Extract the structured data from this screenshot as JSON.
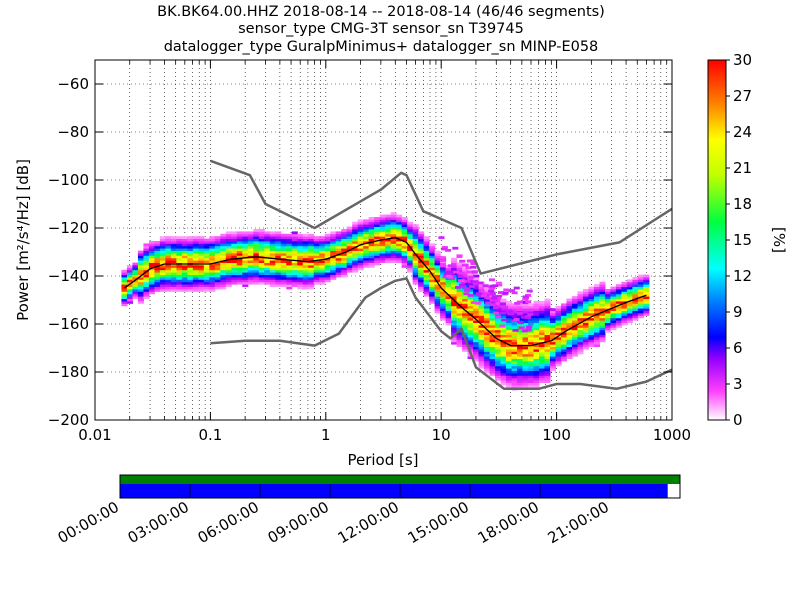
{
  "header": {
    "line1": "BK.BK64.00.HHZ   2018-08-14 -- 2018-08-14  (46/46 segments)",
    "line2": "sensor_type CMG-3T sensor_sn T39745",
    "line3": "datalogger_type GuralpMinimus+ datalogger_sn MINP-E058"
  },
  "chart_data": {
    "type": "heatmap",
    "xlabel": "Period [s]",
    "ylabel": "Power [m²/s⁴/Hz] [dB]",
    "xscale": "log",
    "xlim": [
      0.01,
      1000
    ],
    "ylim": [
      -200,
      -50
    ],
    "x_ticks": [
      {
        "v": 0.01,
        "label": "0.01"
      },
      {
        "v": 0.1,
        "label": "0.1"
      },
      {
        "v": 1,
        "label": "1"
      },
      {
        "v": 10,
        "label": "10"
      },
      {
        "v": 100,
        "label": "100"
      },
      {
        "v": 1000,
        "label": "1000"
      }
    ],
    "y_ticks": [
      {
        "v": -60,
        "label": "−60"
      },
      {
        "v": -80,
        "label": "−80"
      },
      {
        "v": -100,
        "label": "−100"
      },
      {
        "v": -120,
        "label": "−120"
      },
      {
        "v": -140,
        "label": "−140"
      },
      {
        "v": -160,
        "label": "−160"
      },
      {
        "v": -180,
        "label": "−180"
      },
      {
        "v": -200,
        "label": "−200"
      }
    ],
    "grid": true,
    "colorbar": {
      "label": "[%]",
      "range": [
        0,
        30
      ],
      "ticks": [
        {
          "v": 0,
          "label": "0"
        },
        {
          "v": 3,
          "label": "3"
        },
        {
          "v": 6,
          "label": "6"
        },
        {
          "v": 9,
          "label": "9"
        },
        {
          "v": 12,
          "label": "12"
        },
        {
          "v": 15,
          "label": "15"
        },
        {
          "v": 18,
          "label": "18"
        },
        {
          "v": 21,
          "label": "21"
        },
        {
          "v": 24,
          "label": "24"
        },
        {
          "v": 27,
          "label": "27"
        },
        {
          "v": 30,
          "label": "30"
        }
      ]
    },
    "mode_curve": [
      [
        0.018,
        -145
      ],
      [
        0.022,
        -142
      ],
      [
        0.03,
        -137
      ],
      [
        0.04,
        -135
      ],
      [
        0.06,
        -135
      ],
      [
        0.1,
        -135
      ],
      [
        0.15,
        -133
      ],
      [
        0.25,
        -132
      ],
      [
        0.4,
        -133
      ],
      [
        0.7,
        -134
      ],
      [
        1.0,
        -133
      ],
      [
        1.5,
        -130
      ],
      [
        2.0,
        -127
      ],
      [
        3.0,
        -125
      ],
      [
        4.0,
        -124
      ],
      [
        5.0,
        -126
      ],
      [
        6.0,
        -131
      ],
      [
        8.0,
        -138
      ],
      [
        10.0,
        -145
      ],
      [
        15.0,
        -153
      ],
      [
        20.0,
        -158
      ],
      [
        30.0,
        -166
      ],
      [
        40.0,
        -169
      ],
      [
        60.0,
        -169
      ],
      [
        90.0,
        -167
      ],
      [
        120.0,
        -163
      ],
      [
        200.0,
        -157
      ],
      [
        400.0,
        -151
      ],
      [
        600.0,
        -148
      ]
    ],
    "nhnm": [
      [
        0.1,
        -92
      ],
      [
        0.22,
        -98
      ],
      [
        0.3,
        -110
      ],
      [
        0.8,
        -120
      ],
      [
        3.0,
        -104
      ],
      [
        4.5,
        -97
      ],
      [
        5.0,
        -98
      ],
      [
        7.0,
        -113
      ],
      [
        15.0,
        -120
      ],
      [
        22.0,
        -139
      ],
      [
        100.0,
        -131
      ],
      [
        350.0,
        -126
      ],
      [
        1000.0,
        -112
      ]
    ],
    "nlnm": [
      [
        0.1,
        -168
      ],
      [
        0.2,
        -167
      ],
      [
        0.4,
        -167
      ],
      [
        0.8,
        -169
      ],
      [
        1.3,
        -164
      ],
      [
        2.2,
        -149
      ],
      [
        3.0,
        -145
      ],
      [
        4.0,
        -142
      ],
      [
        5.0,
        -141
      ],
      [
        6.0,
        -149
      ],
      [
        10.0,
        -163
      ],
      [
        12.0,
        -166
      ],
      [
        15.0,
        -162
      ],
      [
        20.0,
        -178
      ],
      [
        35.0,
        -187
      ],
      [
        70.0,
        -187
      ],
      [
        100.0,
        -185
      ],
      [
        160.0,
        -185
      ],
      [
        330.0,
        -187
      ],
      [
        600.0,
        -184
      ],
      [
        1000.0,
        -179
      ]
    ]
  },
  "timeline": {
    "labels": [
      "00:00:00",
      "03:00:00",
      "06:00:00",
      "09:00:00",
      "12:00:00",
      "15:00:00",
      "18:00:00",
      "21:00:00"
    ],
    "coverage_fraction": 0.978,
    "top_color": "#008000",
    "bottom_color": "#0000ff"
  }
}
